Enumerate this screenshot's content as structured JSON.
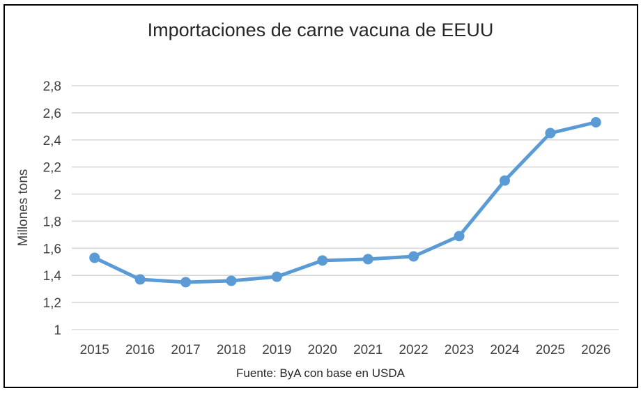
{
  "chart_data": {
    "type": "line",
    "title": "Importaciones de carne vacuna de EEUU",
    "xlabel": "",
    "ylabel": "Millones tons",
    "source": "Fuente: ByA con base en USDA",
    "categories": [
      "2015",
      "2016",
      "2017",
      "2018",
      "2019",
      "2020",
      "2021",
      "2022",
      "2023",
      "2024",
      "2025",
      "2026"
    ],
    "values": [
      1.53,
      1.37,
      1.35,
      1.36,
      1.39,
      1.51,
      1.52,
      1.54,
      1.69,
      2.1,
      2.45,
      2.53
    ],
    "ylim": [
      1.0,
      2.8
    ],
    "y_ticks": [
      1.0,
      1.2,
      1.4,
      1.6,
      1.8,
      2.0,
      2.2,
      2.4,
      2.6,
      2.8
    ],
    "y_tick_labels": [
      "1",
      "1,2",
      "1,4",
      "1,6",
      "1,8",
      "2",
      "2,2",
      "2,4",
      "2,6",
      "2,8"
    ],
    "grid": true,
    "legend": "none",
    "colors": {
      "line": "#5B9BD5",
      "marker": "#5B9BD5",
      "gridline": "#D9D9D9",
      "title_text": "#262626",
      "tick_text": "#404040",
      "frame_border": "#000000",
      "background": "#ffffff"
    }
  }
}
